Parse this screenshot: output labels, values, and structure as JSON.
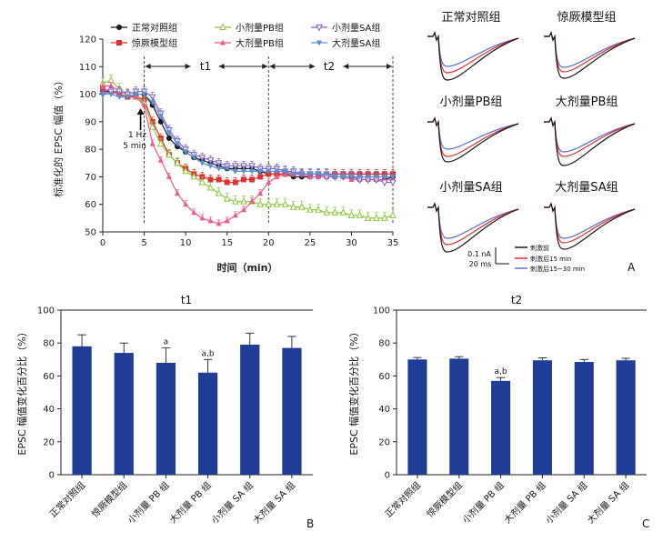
{
  "colors": {
    "control": "#1a1a1a",
    "model": "#e03030",
    "pb_small": "#8cc63f",
    "pb_large": "#ee5a8c",
    "sa_small": "#8b5fbf",
    "sa_large": "#5b8fd0",
    "bar": "#1f3c96",
    "trace_pre": "#1a1a1a",
    "trace_15": "#e03030",
    "trace_30": "#5b6fd0"
  },
  "panelA": {
    "panel_letter": "A",
    "scale_bar": {
      "amp": "0.1 nA",
      "time": "20 ms"
    },
    "trace_legend": [
      "刺激前",
      "刺激后15 min",
      "刺激后15~30 min"
    ],
    "trace_titles": [
      "正常对照组",
      "惊厥模型组",
      "小剂量PB组",
      "大剂量PB组",
      "小剂量SA组",
      "大剂量SA组"
    ]
  },
  "panelB": {
    "panel_letter": "B"
  },
  "panelC": {
    "panel_letter": "C"
  },
  "chart_data": [
    {
      "type": "line",
      "xlabel": "时间（min）",
      "ylabel": "标准化的 EPSC 幅值（%）",
      "xlim": [
        0,
        35
      ],
      "ylim": [
        50,
        120
      ],
      "xticks": [
        0,
        5,
        10,
        15,
        20,
        25,
        30,
        35
      ],
      "yticks": [
        50,
        60,
        70,
        80,
        90,
        100,
        110,
        120
      ],
      "legend_position": "top-left",
      "annotations": {
        "stim_text": [
          "1 Hz",
          "5 min"
        ],
        "stim_time": 5,
        "t1_label": "t1",
        "t1_range": [
          5,
          20
        ],
        "t2_label": "t2",
        "t2_range": [
          20,
          35
        ]
      },
      "x": [
        0,
        1,
        2,
        3,
        4,
        5,
        6,
        7,
        8,
        9,
        10,
        11,
        12,
        13,
        14,
        15,
        16,
        17,
        18,
        19,
        20,
        21,
        22,
        23,
        24,
        25,
        26,
        27,
        28,
        29,
        30,
        31,
        32,
        33,
        34,
        35
      ],
      "series": [
        {
          "name": "正常对照组",
          "color_key": "control",
          "marker": "circle",
          "values": [
            101,
            101,
            100,
            99,
            100,
            100,
            96,
            90,
            84,
            81,
            79,
            77,
            76,
            75,
            74,
            73,
            73,
            73,
            73,
            72,
            71,
            71,
            71,
            70,
            70,
            70,
            70,
            70,
            70,
            70,
            70,
            69,
            69,
            69,
            69,
            70
          ]
        },
        {
          "name": "惊厥模型组",
          "color_key": "model",
          "marker": "square",
          "values": [
            102,
            101,
            100,
            99,
            99,
            98,
            90,
            84,
            78,
            75,
            73,
            71,
            70,
            69,
            69,
            68,
            68,
            69,
            69,
            70,
            71,
            71,
            71,
            71,
            71,
            71,
            71,
            71,
            71,
            71,
            71,
            71,
            71,
            71,
            71,
            71
          ]
        },
        {
          "name": "小剂量PB组",
          "color_key": "pb_small",
          "marker": "triangle-open",
          "values": [
            104,
            105,
            102,
            100,
            99,
            97,
            88,
            82,
            78,
            75,
            72,
            70,
            68,
            66,
            64,
            62,
            61,
            61,
            61,
            60,
            60,
            60,
            60,
            59,
            59,
            58,
            58,
            57,
            57,
            57,
            56,
            56,
            55,
            55,
            55,
            56
          ]
        },
        {
          "name": "大剂量PB组",
          "color_key": "pb_large",
          "marker": "triangle",
          "values": [
            103,
            103,
            101,
            100,
            99,
            96,
            82,
            76,
            70,
            64,
            60,
            57,
            55,
            54,
            53,
            54,
            56,
            58,
            61,
            64,
            68,
            70,
            71,
            71,
            71,
            70,
            70,
            70,
            70,
            70,
            69,
            69,
            69,
            69,
            69,
            69
          ]
        },
        {
          "name": "小剂量SA组",
          "color_key": "sa_small",
          "marker": "triangle-down-open",
          "values": [
            100,
            101,
            101,
            100,
            101,
            101,
            99,
            93,
            87,
            83,
            80,
            78,
            77,
            76,
            75,
            74,
            74,
            74,
            74,
            73,
            73,
            73,
            72,
            72,
            71,
            71,
            71,
            70,
            70,
            70,
            70,
            69,
            69,
            69,
            68,
            68
          ]
        },
        {
          "name": "大剂量SA组",
          "color_key": "sa_large",
          "marker": "triangle-down",
          "values": [
            100,
            100,
            99,
            99,
            100,
            100,
            97,
            92,
            86,
            82,
            79,
            77,
            75,
            74,
            73,
            73,
            72,
            72,
            72,
            72,
            72,
            72,
            72,
            71,
            71,
            71,
            71,
            71,
            70,
            70,
            70,
            70,
            70,
            70,
            70,
            70
          ]
        }
      ]
    },
    {
      "type": "bar",
      "title": "t1",
      "ylabel": "EPSC 幅值变化百分比（%）",
      "ylim": [
        0,
        100
      ],
      "yticks": [
        0,
        20,
        40,
        60,
        80,
        100
      ],
      "categories": [
        "正常对照组",
        "惊厥模型组",
        "小剂量 PB 组",
        "大剂量 PB 组",
        "小剂量 SA 组",
        "大剂量 SA 组"
      ],
      "values": [
        78,
        74,
        68,
        62,
        79,
        77
      ],
      "errors": [
        7,
        6,
        9,
        8,
        7,
        7
      ],
      "labels": [
        "",
        "",
        "a",
        "a,b",
        "",
        ""
      ]
    },
    {
      "type": "bar",
      "title": "t2",
      "ylabel": "EPSC 幅值变化百分比（%）",
      "ylim": [
        0,
        100
      ],
      "yticks": [
        0,
        20,
        40,
        60,
        80,
        100
      ],
      "categories": [
        "正常对照组",
        "惊厥模型组",
        "小剂量 PB 组",
        "大剂量 PB 组",
        "小剂量 SA 组",
        "大剂量 SA 组"
      ],
      "values": [
        70,
        70.5,
        57,
        69.5,
        68.5,
        69.5
      ],
      "errors": [
        1.2,
        1.2,
        2,
        1.5,
        1.5,
        1.2
      ],
      "labels": [
        "",
        "",
        "a,b",
        "",
        "",
        ""
      ]
    }
  ]
}
